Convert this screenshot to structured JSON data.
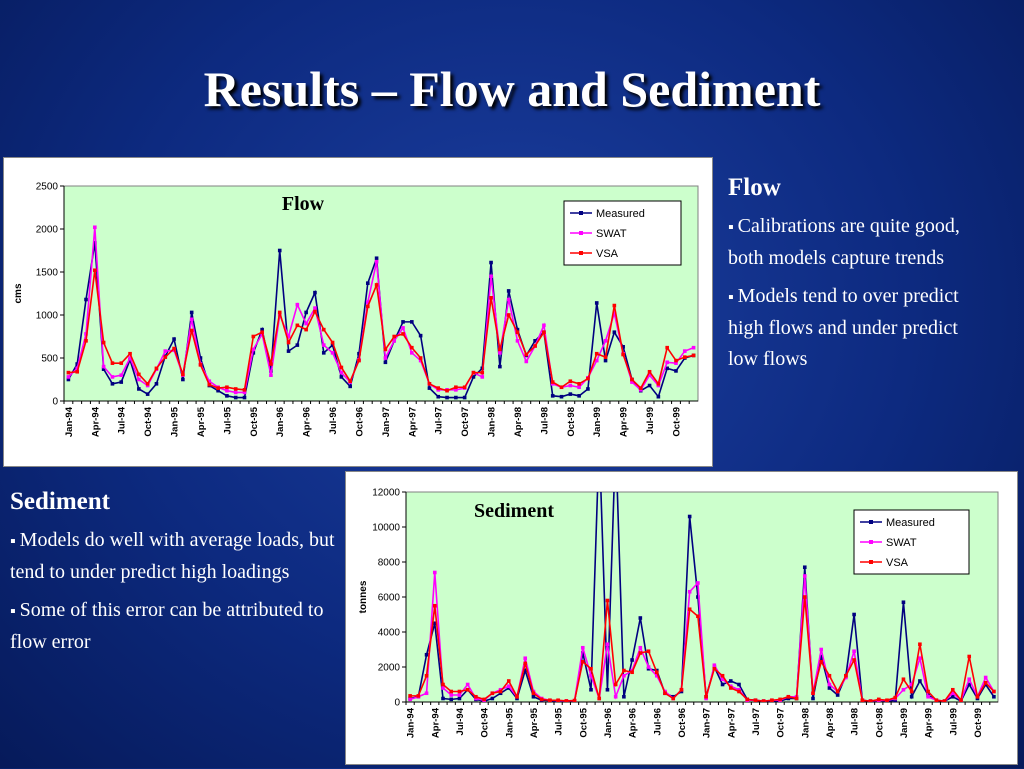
{
  "title": "Results – Flow and Sediment",
  "flow_notes": {
    "heading": "Flow",
    "bullets": [
      "Calibrations are quite good, both models capture trends",
      "Models tend to over predict high flows and under predict low flows"
    ]
  },
  "sediment_notes": {
    "heading": "Sediment",
    "bullets": [
      "Models do well with average loads, but tend to under predict high loadings",
      "Some of this error can be attributed to flow error"
    ]
  },
  "chart_data": [
    {
      "type": "line",
      "title": "Flow",
      "y_label": "cms",
      "legend": "upper right",
      "categories": [
        "Jan-94",
        null,
        null,
        "Apr-94",
        null,
        null,
        "Jul-94",
        null,
        null,
        "Oct-94",
        null,
        null,
        "Jan-95",
        null,
        null,
        "Apr-95",
        null,
        null,
        "Jul-95",
        null,
        null,
        "Oct-95",
        null,
        null,
        "Jan-96",
        null,
        null,
        "Apr-96",
        null,
        null,
        "Jul-96",
        null,
        null,
        "Oct-96",
        null,
        null,
        "Jan-97",
        null,
        null,
        "Apr-97",
        null,
        null,
        "Jul-97",
        null,
        null,
        "Oct-97",
        null,
        null,
        "Jan-98",
        null,
        null,
        "Apr-98",
        null,
        null,
        "Jul-98",
        null,
        null,
        "Oct-98",
        null,
        null,
        "Jan-99",
        null,
        null,
        "Apr-99",
        null,
        null,
        "Jul-99",
        null,
        null,
        "Oct-99",
        null,
        null
      ],
      "ylim": [
        0,
        2500
      ],
      "yticks": [
        0,
        500,
        1000,
        1500,
        2000,
        2500
      ],
      "series": [
        {
          "name": "Measured",
          "color": "#000080",
          "values": [
            250,
            430,
            1180,
            1840,
            370,
            200,
            220,
            480,
            140,
            80,
            200,
            520,
            720,
            250,
            1030,
            500,
            180,
            120,
            60,
            40,
            40,
            560,
            830,
            350,
            1750,
            580,
            650,
            1030,
            1260,
            560,
            650,
            280,
            170,
            550,
            1370,
            1660,
            450,
            700,
            920,
            920,
            760,
            150,
            50,
            40,
            40,
            40,
            280,
            380,
            1610,
            400,
            1280,
            830,
            530,
            700,
            800,
            60,
            50,
            80,
            60,
            140,
            1140,
            470,
            800,
            630,
            250,
            120,
            180,
            50,
            380,
            350,
            500,
            530
          ]
        },
        {
          "name": "SWAT",
          "color": "#ff00ff",
          "values": [
            280,
            380,
            780,
            2020,
            400,
            280,
            300,
            500,
            250,
            180,
            370,
            580,
            590,
            300,
            950,
            430,
            230,
            160,
            120,
            100,
            100,
            600,
            780,
            300,
            1000,
            750,
            1120,
            900,
            1080,
            650,
            560,
            330,
            220,
            480,
            1150,
            1620,
            500,
            700,
            850,
            560,
            470,
            200,
            130,
            130,
            130,
            150,
            330,
            280,
            1450,
            560,
            1180,
            700,
            460,
            640,
            880,
            200,
            160,
            180,
            160,
            270,
            470,
            700,
            1020,
            550,
            220,
            130,
            300,
            180,
            450,
            440,
            580,
            620
          ]
        },
        {
          "name": "VSA",
          "color": "#ff0000",
          "values": [
            330,
            340,
            700,
            1520,
            680,
            440,
            440,
            550,
            310,
            200,
            380,
            510,
            610,
            310,
            820,
            420,
            190,
            150,
            160,
            140,
            130,
            750,
            800,
            430,
            1030,
            680,
            880,
            830,
            1040,
            830,
            680,
            390,
            230,
            470,
            1100,
            1350,
            600,
            750,
            780,
            620,
            500,
            200,
            150,
            120,
            160,
            160,
            330,
            330,
            1200,
            600,
            1000,
            800,
            540,
            640,
            800,
            220,
            160,
            230,
            200,
            260,
            550,
            510,
            1110,
            540,
            250,
            150,
            340,
            200,
            620,
            470,
            510,
            530
          ]
        }
      ]
    },
    {
      "type": "line",
      "title": "Sediment",
      "y_label": "tonnes",
      "legend": "upper right",
      "categories": [
        "Jan-94",
        null,
        null,
        "Apr-94",
        null,
        null,
        "Jul-94",
        null,
        null,
        "Oct-94",
        null,
        null,
        "Jan-95",
        null,
        null,
        "Apr-95",
        null,
        null,
        "Jul-95",
        null,
        null,
        "Oct-95",
        null,
        null,
        "Jan-96",
        null,
        null,
        "Apr-96",
        null,
        null,
        "Jul-96",
        null,
        null,
        "Oct-96",
        null,
        null,
        "Jan-97",
        null,
        null,
        "Apr-97",
        null,
        null,
        "Jul-97",
        null,
        null,
        "Oct-97",
        null,
        null,
        "Jan-98",
        null,
        null,
        "Apr-98",
        null,
        null,
        "Jul-98",
        null,
        null,
        "Oct-98",
        null,
        null,
        "Jan-99",
        null,
        null,
        "Apr-99",
        null,
        null,
        "Jul-99",
        null,
        null,
        "Oct-99",
        null,
        null
      ],
      "ylim": [
        0,
        12000
      ],
      "yticks": [
        0,
        2000,
        4000,
        6000,
        8000,
        10000,
        12000
      ],
      "series": [
        {
          "name": "Measured",
          "color": "#000080",
          "values": [
            200,
            300,
            2700,
            4500,
            200,
            150,
            200,
            700,
            150,
            50,
            200,
            500,
            800,
            200,
            1800,
            300,
            100,
            80,
            50,
            30,
            30,
            2800,
            700,
            15000,
            700,
            15000,
            300,
            2400,
            4800,
            1900,
            1800,
            500,
            300,
            600,
            10600,
            6000,
            300,
            2000,
            1000,
            1200,
            1000,
            150,
            100,
            50,
            50,
            50,
            200,
            200,
            7700,
            200,
            2600,
            800,
            400,
            1500,
            5000,
            100,
            50,
            100,
            50,
            100,
            5700,
            300,
            1200,
            400,
            100,
            50,
            300,
            50,
            1000,
            200,
            1000,
            300
          ]
        },
        {
          "name": "SWAT",
          "color": "#ff00ff",
          "values": [
            150,
            300,
            500,
            7400,
            800,
            400,
            400,
            1000,
            200,
            100,
            500,
            700,
            900,
            300,
            2500,
            600,
            200,
            100,
            80,
            60,
            80,
            3100,
            1500,
            200,
            3300,
            300,
            1500,
            1800,
            3100,
            2000,
            1500,
            600,
            200,
            700,
            6300,
            6800,
            200,
            2100,
            1300,
            900,
            700,
            100,
            100,
            50,
            100,
            100,
            300,
            300,
            7200,
            500,
            3000,
            1000,
            600,
            1400,
            2900,
            100,
            50,
            100,
            80,
            200,
            700,
            1000,
            2500,
            300,
            100,
            50,
            500,
            100,
            1300,
            300,
            1400,
            600
          ]
        },
        {
          "name": "VSA",
          "color": "#ff0000",
          "values": [
            350,
            350,
            1500,
            5500,
            1000,
            600,
            600,
            700,
            300,
            150,
            500,
            600,
            1200,
            300,
            2200,
            500,
            150,
            100,
            100,
            60,
            80,
            2300,
            1900,
            200,
            5800,
            1000,
            1800,
            1700,
            2800,
            2900,
            1700,
            500,
            200,
            700,
            5300,
            4900,
            300,
            1900,
            1500,
            800,
            600,
            150,
            100,
            50,
            100,
            150,
            300,
            200,
            6000,
            500,
            2300,
            1500,
            600,
            1500,
            2400,
            100,
            50,
            150,
            100,
            250,
            1300,
            600,
            3300,
            600,
            100,
            50,
            700,
            100,
            2600,
            300,
            1100,
            600
          ]
        }
      ]
    }
  ]
}
